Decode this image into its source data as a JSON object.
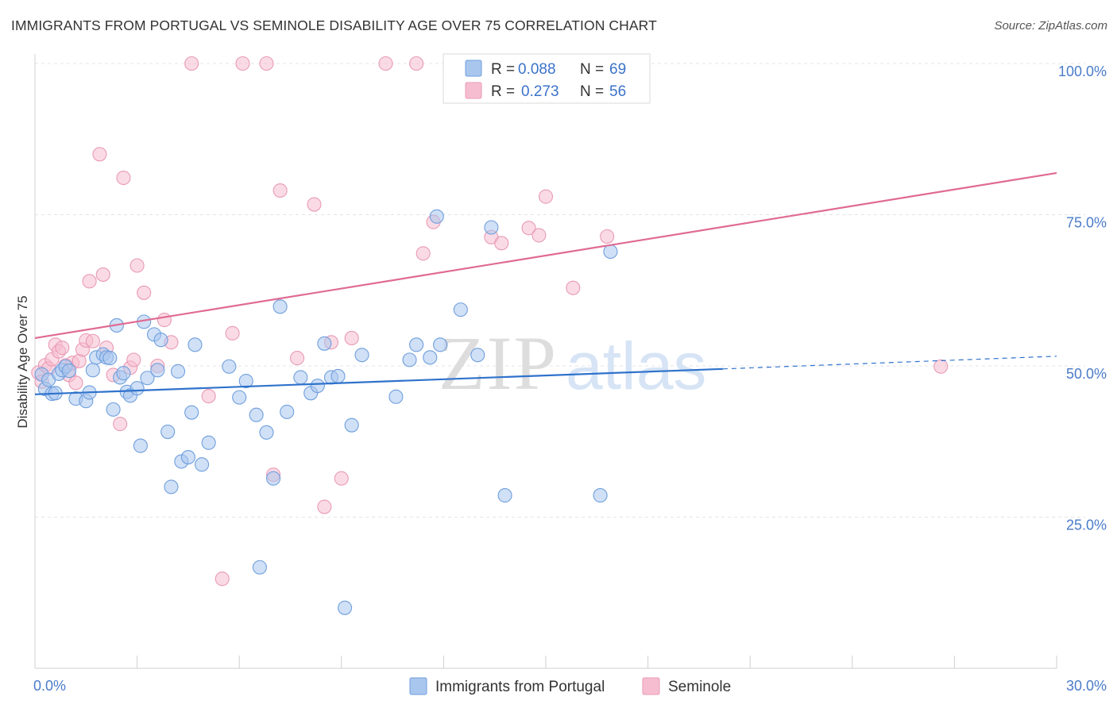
{
  "header": {
    "title": "IMMIGRANTS FROM PORTUGAL VS SEMINOLE DISABILITY AGE OVER 75 CORRELATION CHART",
    "source": "Source: ZipAtlas.com"
  },
  "watermark": {
    "text_a": "ZIP",
    "text_b": "atlas"
  },
  "colors": {
    "blue_fill": "#a9c6ee",
    "blue_stroke": "#6f9fdd",
    "blue_line": "#2f72cc",
    "pink_fill": "#f6bdd0",
    "pink_stroke": "#e99ab5",
    "pink_line": "#e06a93",
    "tick_color": "#4a7cc9"
  },
  "legend": {
    "rows": [
      {
        "r_label": "R = ",
        "r_value": "0.088",
        "n_label": "N = ",
        "n_value": "69",
        "color": "blue"
      },
      {
        "r_label": "R = ",
        "r_value": "0.273",
        "n_label": "N = ",
        "n_value": "56",
        "color": "pink"
      }
    ]
  },
  "chart_data": {
    "type": "scatter",
    "title": "IMMIGRANTS FROM PORTUGAL VS SEMINOLE DISABILITY AGE OVER 75 CORRELATION CHART",
    "xlabel": "",
    "ylabel": "Disability Age Over 75",
    "xlim": [
      0,
      30
    ],
    "ylim": [
      0,
      105
    ],
    "x_ticks": [
      {
        "value": 0,
        "label": "0.0%"
      },
      {
        "value": 30,
        "label": "30.0%"
      }
    ],
    "y_ticks": [
      {
        "value": 25,
        "label": "25.0%"
      },
      {
        "value": 50,
        "label": "50.0%"
      },
      {
        "value": 75,
        "label": "75.0%"
      },
      {
        "value": 100,
        "label": "100.0%"
      }
    ],
    "grid": true,
    "legend_position": "top-center",
    "series": [
      {
        "name": "Immigrants from Portugal",
        "color": "blue",
        "trend": {
          "x0": 0,
          "y0": 45.3,
          "x1": 20.2,
          "y1": 49.5,
          "dash_to_x": 30,
          "dash_to_y": 51.6
        },
        "points": [
          [
            0.2,
            48.6
          ],
          [
            0.3,
            46.2
          ],
          [
            0.4,
            47.7
          ],
          [
            0.5,
            45.4
          ],
          [
            0.6,
            45.5
          ],
          [
            0.7,
            48.7
          ],
          [
            0.8,
            49.3
          ],
          [
            0.9,
            49.9
          ],
          [
            1.0,
            49.2
          ],
          [
            1.2,
            44.6
          ],
          [
            1.5,
            44.2
          ],
          [
            1.6,
            45.6
          ],
          [
            1.7,
            49.3
          ],
          [
            1.8,
            51.4
          ],
          [
            2.0,
            51.9
          ],
          [
            2.1,
            51.4
          ],
          [
            2.2,
            51.3
          ],
          [
            2.3,
            42.8
          ],
          [
            2.4,
            56.7
          ],
          [
            2.5,
            48.1
          ],
          [
            2.6,
            48.8
          ],
          [
            2.7,
            45.7
          ],
          [
            2.8,
            45.1
          ],
          [
            3.0,
            46.3
          ],
          [
            3.1,
            36.8
          ],
          [
            3.2,
            57.3
          ],
          [
            3.3,
            48.0
          ],
          [
            3.5,
            55.2
          ],
          [
            3.6,
            49.3
          ],
          [
            3.7,
            54.3
          ],
          [
            3.9,
            39.1
          ],
          [
            4.0,
            30.0
          ],
          [
            4.2,
            49.1
          ],
          [
            4.3,
            34.2
          ],
          [
            4.5,
            34.9
          ],
          [
            4.6,
            42.3
          ],
          [
            4.7,
            53.5
          ],
          [
            4.9,
            33.7
          ],
          [
            5.1,
            37.3
          ],
          [
            5.7,
            49.9
          ],
          [
            6.0,
            44.8
          ],
          [
            6.2,
            47.5
          ],
          [
            6.5,
            41.9
          ],
          [
            6.6,
            16.7
          ],
          [
            6.8,
            39.0
          ],
          [
            7.0,
            31.4
          ],
          [
            7.2,
            59.8
          ],
          [
            7.4,
            42.4
          ],
          [
            7.8,
            48.1
          ],
          [
            8.1,
            45.5
          ],
          [
            8.3,
            46.7
          ],
          [
            8.5,
            53.7
          ],
          [
            8.7,
            48.1
          ],
          [
            8.9,
            48.3
          ],
          [
            9.1,
            10.0
          ],
          [
            9.3,
            40.2
          ],
          [
            9.6,
            51.8
          ],
          [
            10.6,
            44.9
          ],
          [
            11.0,
            51.0
          ],
          [
            11.2,
            53.5
          ],
          [
            11.8,
            74.7
          ],
          [
            11.9,
            53.5
          ],
          [
            12.5,
            59.3
          ],
          [
            13.0,
            51.8
          ],
          [
            13.4,
            72.9
          ],
          [
            13.8,
            28.6
          ],
          [
            16.6,
            28.6
          ],
          [
            16.9,
            68.9
          ],
          [
            11.6,
            51.4
          ]
        ]
      },
      {
        "name": "Seminole",
        "color": "pink",
        "trend": {
          "x0": 0,
          "y0": 54.6,
          "x1": 30,
          "y1": 81.9
        },
        "points": [
          [
            0.1,
            48.9
          ],
          [
            0.2,
            47.4
          ],
          [
            0.3,
            50.1
          ],
          [
            0.4,
            49.6
          ],
          [
            0.5,
            51.1
          ],
          [
            0.6,
            53.5
          ],
          [
            0.7,
            52.4
          ],
          [
            0.8,
            53.0
          ],
          [
            0.9,
            50.1
          ],
          [
            1.0,
            48.5
          ],
          [
            1.1,
            50.5
          ],
          [
            1.2,
            47.2
          ],
          [
            1.3,
            50.8
          ],
          [
            1.4,
            52.7
          ],
          [
            1.5,
            54.2
          ],
          [
            1.6,
            64.0
          ],
          [
            1.7,
            54.1
          ],
          [
            1.9,
            85.0
          ],
          [
            2.0,
            65.1
          ],
          [
            2.1,
            53.0
          ],
          [
            2.3,
            48.5
          ],
          [
            2.5,
            40.4
          ],
          [
            2.6,
            81.1
          ],
          [
            2.8,
            49.7
          ],
          [
            3.0,
            66.6
          ],
          [
            3.2,
            62.1
          ],
          [
            3.6,
            50.0
          ],
          [
            3.8,
            57.6
          ],
          [
            4.0,
            53.9
          ],
          [
            4.6,
            100.0
          ],
          [
            5.1,
            45.0
          ],
          [
            5.5,
            14.8
          ],
          [
            5.8,
            55.4
          ],
          [
            6.1,
            100.0
          ],
          [
            6.8,
            100.0
          ],
          [
            7.0,
            32.0
          ],
          [
            7.2,
            79.0
          ],
          [
            7.7,
            51.3
          ],
          [
            8.2,
            76.7
          ],
          [
            8.5,
            26.7
          ],
          [
            8.7,
            53.9
          ],
          [
            9.0,
            31.4
          ],
          [
            9.3,
            54.6
          ],
          [
            10.3,
            100.0
          ],
          [
            11.2,
            100.0
          ],
          [
            11.4,
            68.6
          ],
          [
            11.7,
            73.8
          ],
          [
            13.4,
            71.3
          ],
          [
            13.7,
            70.3
          ],
          [
            14.5,
            72.8
          ],
          [
            14.8,
            71.6
          ],
          [
            15.0,
            78.0
          ],
          [
            15.8,
            62.9
          ],
          [
            16.8,
            71.4
          ],
          [
            26.6,
            49.9
          ],
          [
            2.9,
            51.0
          ]
        ]
      }
    ]
  },
  "bottom_legend": {
    "items": [
      {
        "label": "Immigrants from Portugal",
        "color": "blue"
      },
      {
        "label": "Seminole",
        "color": "pink"
      }
    ]
  }
}
